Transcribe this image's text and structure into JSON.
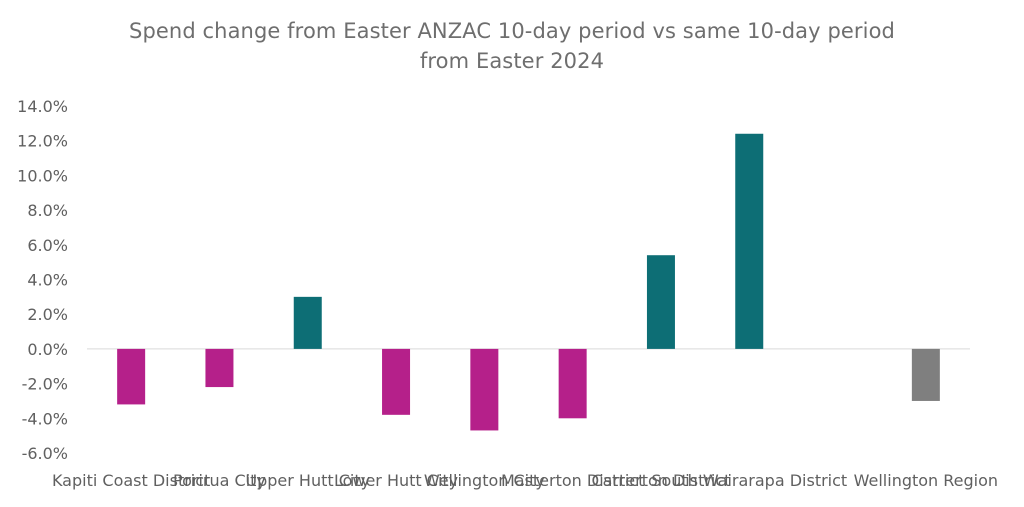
{
  "chart_data": {
    "type": "bar",
    "title_line1": "Spend change from Easter ANZAC 10-day period vs same 10-day period",
    "title_line2": "from Easter 2024",
    "categories": [
      "Kapiti Coast District",
      "Porirua City",
      "Upper Hutt City",
      "Lower Hutt City",
      "Wellington City",
      "Masterton District",
      "Carterton District",
      "South Wairarapa District",
      "",
      "Wellington Region"
    ],
    "values": [
      -3.2,
      -2.2,
      3.0,
      -3.8,
      -4.7,
      -4.0,
      5.4,
      12.4,
      null,
      -3.0
    ],
    "bar_colors": [
      "#b5208a",
      "#b5208a",
      "#0d6e75",
      "#b5208a",
      "#b5208a",
      "#b5208a",
      "#0d6e75",
      "#0d6e75",
      "#b5208a",
      "#7f7f7f"
    ],
    "yticks": [
      "14.0%",
      "12.0%",
      "10.0%",
      "8.0%",
      "6.0%",
      "4.0%",
      "2.0%",
      "0.0%",
      "-2.0%",
      "-4.0%",
      "-6.0%"
    ],
    "ylim": [
      -6,
      14
    ],
    "unit": "%",
    "grid": false,
    "legend": "none"
  }
}
